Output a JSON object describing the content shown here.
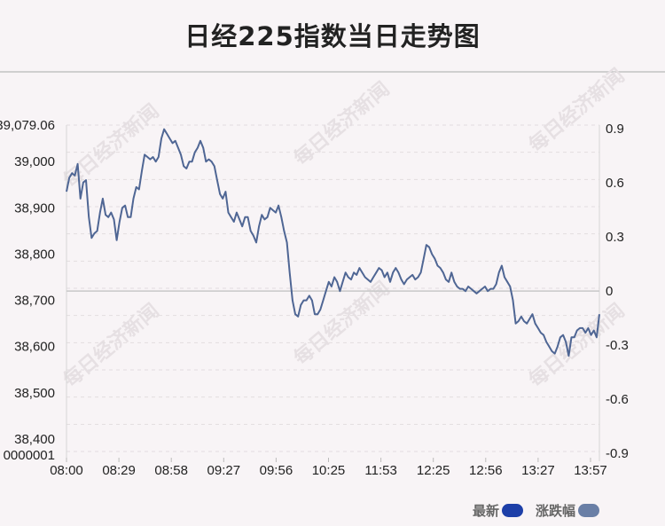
{
  "title": "日经225指数当日走势图",
  "watermark": "每日经济新闻",
  "legend": [
    {
      "label": "最新",
      "color": "#1d3fa8"
    },
    {
      "label": "涨跌幅",
      "color": "#6a7fa6"
    }
  ],
  "chart_data": {
    "type": "line",
    "series_color": "#4f6694",
    "left_axis": {
      "min": 38400,
      "max": 39079.06,
      "ticks": [
        38400,
        38500,
        38600,
        38700,
        38800,
        38900,
        39000,
        39079.06
      ],
      "tick_labels": [
        "38,400",
        "38,500",
        "38,600",
        "38,700",
        "38,800",
        "38,900",
        "39,000",
        "39,079.06"
      ],
      "bottom_label": "0000001",
      "reference_value": 38720
    },
    "right_axis": {
      "min": -0.9,
      "max": 0.9,
      "tick_labels": [
        "0.9",
        "0.6",
        "0.3",
        "0",
        "-0.3",
        "-0.6",
        "-0.9"
      ]
    },
    "x_tick_labels": [
      "08:00",
      "08:29",
      "08:58",
      "09:27",
      "09:56",
      "10:25",
      "11:53",
      "12:25",
      "12:56",
      "13:27",
      "13:57"
    ],
    "series": [
      {
        "values": [
          38935,
          38965,
          38975,
          38970,
          38995,
          38920,
          38955,
          38960,
          38880,
          38835,
          38845,
          38850,
          38890,
          38920,
          38885,
          38880,
          38890,
          38875,
          38830,
          38870,
          38900,
          38905,
          38880,
          38880,
          38920,
          38945,
          38940,
          38980,
          39015,
          39010,
          39005,
          39010,
          39000,
          39010,
          39050,
          39070,
          39060,
          39050,
          39040,
          39045,
          39030,
          39015,
          38990,
          38985,
          39000,
          39000,
          39020,
          39030,
          39045,
          39030,
          39000,
          39005,
          39000,
          38990,
          38960,
          38930,
          38920,
          38935,
          38890,
          38880,
          38870,
          38890,
          38875,
          38860,
          38880,
          38880,
          38850,
          38840,
          38825,
          38860,
          38885,
          38875,
          38880,
          38900,
          38895,
          38890,
          38905,
          38880,
          38850,
          38825,
          38760,
          38700,
          38670,
          38665,
          38690,
          38700,
          38700,
          38710,
          38700,
          38670,
          38670,
          38680,
          38700,
          38720,
          38740,
          38730,
          38750,
          38740,
          38720,
          38740,
          38760,
          38750,
          38745,
          38760,
          38755,
          38770,
          38760,
          38750,
          38745,
          38740,
          38750,
          38760,
          38770,
          38765,
          38750,
          38760,
          38740,
          38760,
          38770,
          38760,
          38745,
          38735,
          38745,
          38750,
          38755,
          38745,
          38750,
          38760,
          38790,
          38820,
          38815,
          38800,
          38790,
          38775,
          38770,
          38760,
          38745,
          38740,
          38760,
          38740,
          38730,
          38725,
          38725,
          38720,
          38730,
          38725,
          38720,
          38715,
          38720,
          38725,
          38730,
          38720,
          38725,
          38725,
          38735,
          38760,
          38775,
          38750,
          38740,
          38730,
          38700,
          38650,
          38655,
          38665,
          38655,
          38650,
          38660,
          38670,
          38650,
          38640,
          38630,
          38625,
          38610,
          38600,
          38590,
          38585,
          38600,
          38620,
          38625,
          38610,
          38580,
          38620,
          38620,
          38635,
          38640,
          38640,
          38630,
          38640,
          38625,
          38635,
          38620,
          38670
        ]
      }
    ]
  }
}
